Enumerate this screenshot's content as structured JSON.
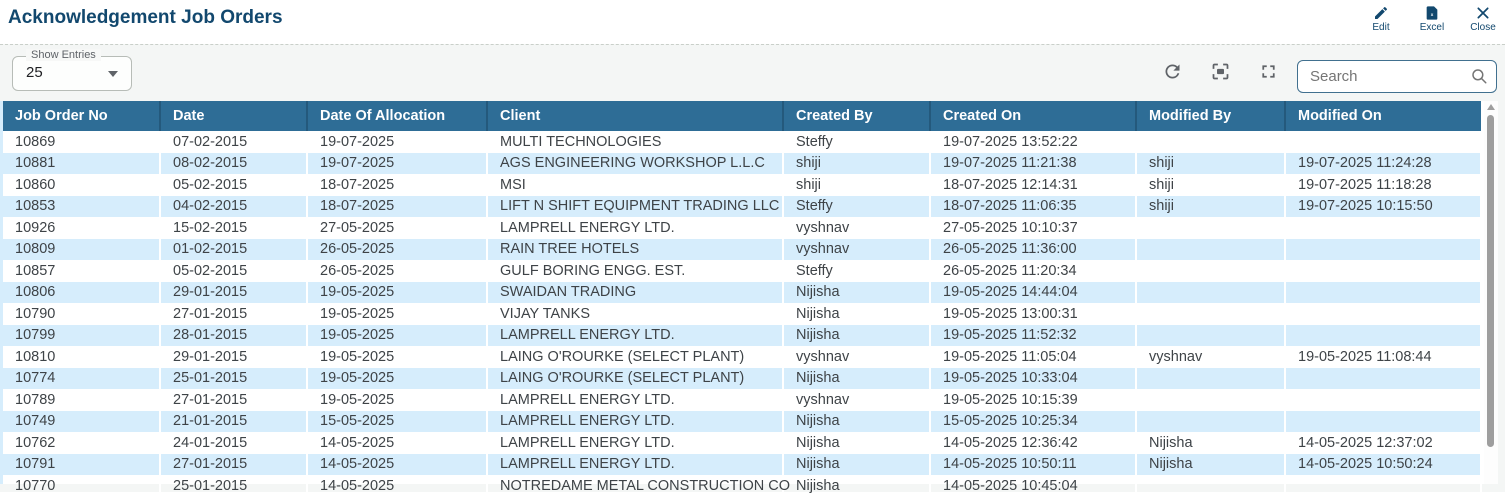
{
  "header": {
    "title": "Acknowledgement Job Orders",
    "actions": [
      {
        "label": "Edit",
        "icon": "edit-pencil-icon"
      },
      {
        "label": "Excel",
        "icon": "excel-file-icon"
      },
      {
        "label": "Close",
        "icon": "close-x-icon"
      }
    ]
  },
  "controls": {
    "show_entries_label": "Show Entries",
    "show_entries_value": "25",
    "toolbar_icons": [
      "refresh-icon",
      "actual-size-icon",
      "fullscreen-icon"
    ],
    "search_placeholder": "Search"
  },
  "table": {
    "columns": [
      {
        "key": "job_order_no",
        "label": "Job Order No"
      },
      {
        "key": "date",
        "label": "Date"
      },
      {
        "key": "date_of_allocation",
        "label": "Date Of Allocation"
      },
      {
        "key": "client",
        "label": "Client"
      },
      {
        "key": "created_by",
        "label": "Created By"
      },
      {
        "key": "created_on",
        "label": "Created On"
      },
      {
        "key": "modified_by",
        "label": "Modified By"
      },
      {
        "key": "modified_on",
        "label": "Modified On"
      }
    ],
    "rows": [
      [
        "10869",
        "07-02-2015",
        "19-07-2025",
        "MULTI TECHNOLOGIES",
        "Steffy",
        "19-07-2025 13:52:22",
        "",
        ""
      ],
      [
        "10881",
        "08-02-2015",
        "19-07-2025",
        "AGS ENGINEERING WORKSHOP L.L.C",
        "shiji",
        "19-07-2025 11:21:38",
        "shiji",
        "19-07-2025 11:24:28"
      ],
      [
        "10860",
        "05-02-2015",
        "18-07-2025",
        "MSI",
        "shiji",
        "18-07-2025 12:14:31",
        "shiji",
        "19-07-2025 11:18:28"
      ],
      [
        "10853",
        "04-02-2015",
        "18-07-2025",
        "LIFT N SHIFT EQUIPMENT TRADING LLC",
        "Steffy",
        "18-07-2025 11:06:35",
        "shiji",
        "19-07-2025 10:15:50"
      ],
      [
        "10926",
        "15-02-2015",
        "27-05-2025",
        "LAMPRELL ENERGY LTD.",
        "vyshnav",
        "27-05-2025 10:10:37",
        "",
        ""
      ],
      [
        "10809",
        "01-02-2015",
        "26-05-2025",
        "RAIN TREE HOTELS",
        "vyshnav",
        "26-05-2025 11:36:00",
        "",
        ""
      ],
      [
        "10857",
        "05-02-2015",
        "26-05-2025",
        "GULF BORING ENGG. EST.",
        "Steffy",
        "26-05-2025 11:20:34",
        "",
        ""
      ],
      [
        "10806",
        "29-01-2015",
        "19-05-2025",
        "SWAIDAN TRADING",
        "Nijisha",
        "19-05-2025 14:44:04",
        "",
        ""
      ],
      [
        "10790",
        "27-01-2015",
        "19-05-2025",
        "VIJAY TANKS",
        "Nijisha",
        "19-05-2025 13:00:31",
        "",
        ""
      ],
      [
        "10799",
        "28-01-2015",
        "19-05-2025",
        "LAMPRELL ENERGY LTD.",
        "Nijisha",
        "19-05-2025 11:52:32",
        "",
        ""
      ],
      [
        "10810",
        "29-01-2015",
        "19-05-2025",
        "LAING O'ROURKE (SELECT PLANT)",
        "vyshnav",
        "19-05-2025 11:05:04",
        "vyshnav",
        "19-05-2025 11:08:44"
      ],
      [
        "10774",
        "25-01-2015",
        "19-05-2025",
        "LAING O'ROURKE (SELECT PLANT)",
        "Nijisha",
        "19-05-2025 10:33:04",
        "",
        ""
      ],
      [
        "10789",
        "27-01-2015",
        "19-05-2025",
        "LAMPRELL ENERGY LTD.",
        "vyshnav",
        "19-05-2025 10:15:39",
        "",
        ""
      ],
      [
        "10749",
        "21-01-2015",
        "15-05-2025",
        "LAMPRELL ENERGY LTD.",
        "Nijisha",
        "15-05-2025 10:25:34",
        "",
        ""
      ],
      [
        "10762",
        "24-01-2015",
        "14-05-2025",
        "LAMPRELL ENERGY LTD.",
        "Nijisha",
        "14-05-2025 12:36:42",
        "Nijisha",
        "14-05-2025 12:37:02"
      ],
      [
        "10791",
        "27-01-2015",
        "14-05-2025",
        "LAMPRELL ENERGY LTD.",
        "Nijisha",
        "14-05-2025 10:50:11",
        "Nijisha",
        "14-05-2025 10:50:24"
      ],
      [
        "10770",
        "25-01-2015",
        "14-05-2025",
        "NOTREDAME METAL CONSTRUCTION CO",
        "Nijisha",
        "14-05-2025 10:45:04",
        "",
        ""
      ]
    ]
  },
  "colors": {
    "header_bg": "#2e6d96",
    "header_separator": "#24597c",
    "alt_row": "#d6edfc",
    "accent_navy": "#12486e",
    "panel_bg": "#f4f6f5",
    "search_border": "#41708f",
    "body_text": "#3e4347"
  }
}
